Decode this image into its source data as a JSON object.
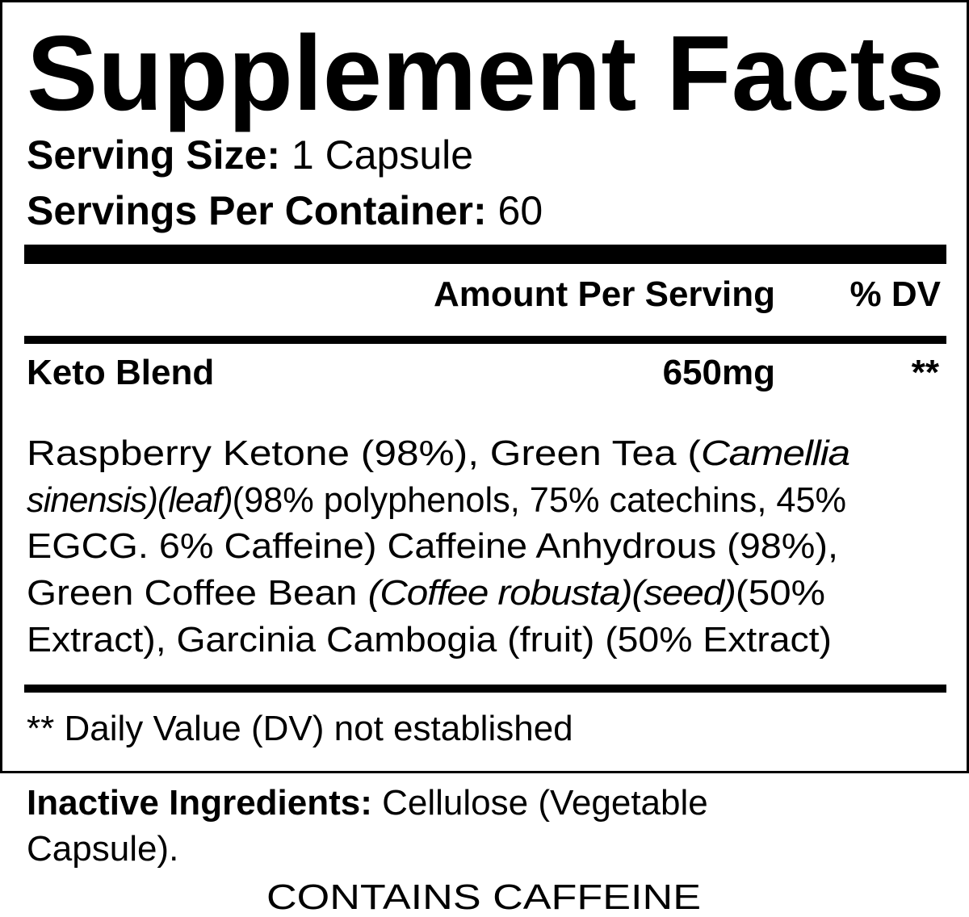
{
  "title": "Supplement Facts",
  "serving_size": {
    "label": "Serving Size:",
    "value": "1 Capsule"
  },
  "servings_per_container": {
    "label": "Servings Per Container:",
    "value": "60"
  },
  "columns": {
    "amount": "Amount Per Serving",
    "dv": "% DV"
  },
  "blend": {
    "name": "Keto Blend",
    "amount": "650mg",
    "dv": "**"
  },
  "ingredients_lines": [
    [
      {
        "text": "Raspberry Ketone (98%), Green Tea (",
        "italic": false
      },
      {
        "text": "Camellia",
        "italic": true
      }
    ],
    [
      {
        "text": "sinensis)(leaf)",
        "italic": true
      },
      {
        "text": "(98% polyphenols, 75% catechins, 45%",
        "italic": false
      }
    ],
    [
      {
        "text": "EGCG. 6% Caffeine) Caffeine Anhydrous (98%),",
        "italic": false
      },
      {
        "text": "",
        "italic": false
      }
    ],
    [
      {
        "text": "Green Coffee Bean ",
        "italic": false
      },
      {
        "text": "(Coffee robusta)(seed)",
        "italic": true
      },
      {
        "text": "(50%",
        "italic": false
      }
    ],
    [
      {
        "text": "Extract), Garcinia Cambogia (fruit) (50% Extract)",
        "italic": false
      }
    ]
  ],
  "footnote": "** Daily Value (DV) not established",
  "inactive": {
    "label": "Inactive Ingredients:",
    "line1": "Cellulose (Vegetable",
    "line2": "Capsule)."
  },
  "warning": "CONTAINS CAFFEINE"
}
